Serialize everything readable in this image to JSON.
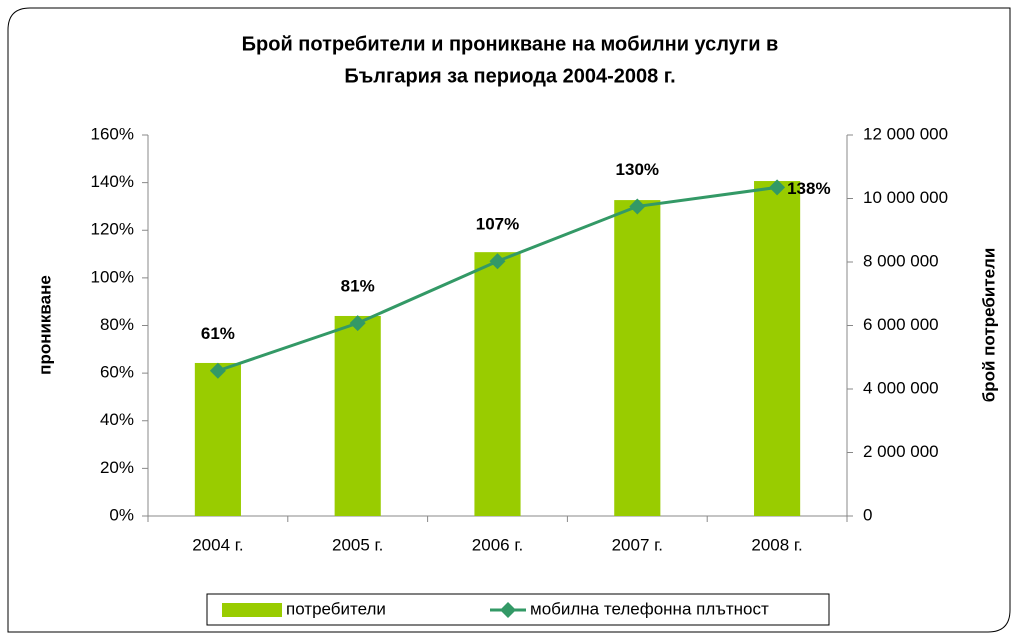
{
  "chart_data": {
    "type": "bar+line",
    "title": [
      "Брой потребители и проникване на мобилни услуги в",
      "България за периода 2004-2008 г."
    ],
    "y_label": "проникване",
    "y2_label": "брой потребители",
    "categories": [
      "2004 г.",
      "2005 г.",
      "2006 г.",
      "2007 г.",
      "2008 г."
    ],
    "series": [
      {
        "name": "потребители",
        "type": "bar",
        "axis": "y2",
        "color": "#99cc00",
        "values": [
          4820000,
          6300000,
          8310000,
          9950000,
          10550000
        ]
      },
      {
        "name": "мобилна телефонна плътност",
        "type": "line",
        "axis": "y",
        "color": "#339966",
        "values": [
          61,
          81,
          107,
          130,
          138
        ],
        "value_labels": [
          "61%",
          "81%",
          "107%",
          "130%",
          "138%"
        ]
      }
    ],
    "ylim": [
      0,
      160
    ],
    "yticks": [
      {
        "value": 0,
        "label": "0%"
      },
      {
        "value": 20,
        "label": "20%"
      },
      {
        "value": 40,
        "label": "40%"
      },
      {
        "value": 60,
        "label": "60%"
      },
      {
        "value": 80,
        "label": "80%"
      },
      {
        "value": 100,
        "label": "100%"
      },
      {
        "value": 120,
        "label": "120%"
      },
      {
        "value": 140,
        "label": "140%"
      },
      {
        "value": 160,
        "label": "160%"
      }
    ],
    "y2lim": [
      0,
      12000000
    ],
    "y2ticks": [
      0,
      {
        "value": 2000000,
        "label": "2 000 000"
      },
      {
        "value": 4000000,
        "label": "4 000 000"
      },
      {
        "value": 6000000,
        "label": "6 000 000"
      },
      {
        "value": 8000000,
        "label": "8 000 000"
      },
      {
        "value": 10000000,
        "label": "10 000 000"
      },
      {
        "value": 12000000,
        "label": "12 000 000"
      }
    ],
    "legend": "bottom"
  }
}
